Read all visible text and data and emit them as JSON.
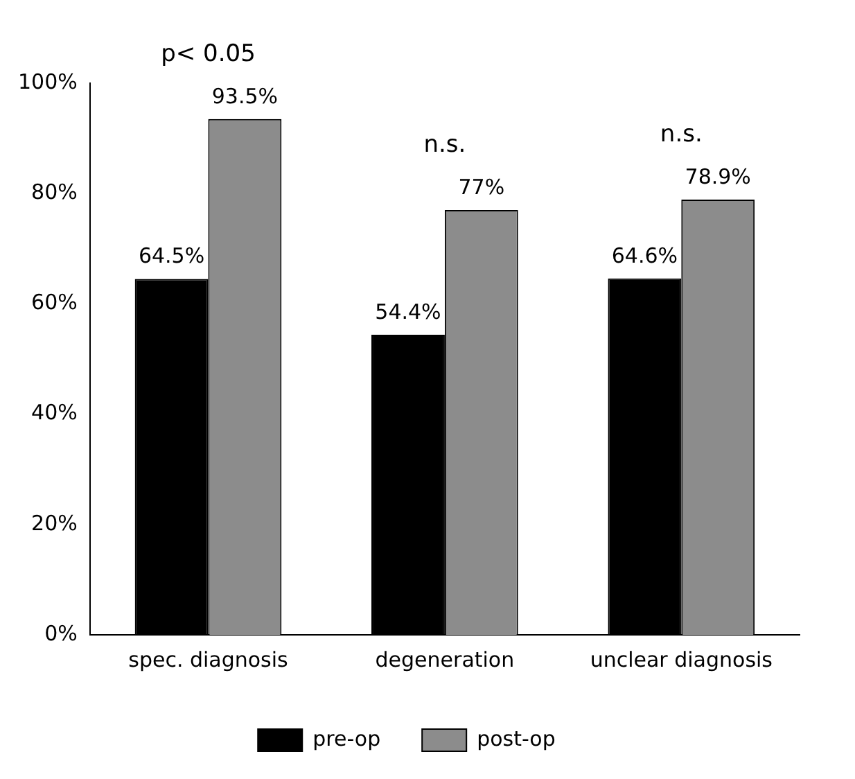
{
  "chart_data": {
    "type": "bar",
    "categories": [
      "spec. diagnosis",
      "degeneration",
      "unclear diagnosis"
    ],
    "series": [
      {
        "name": "pre-op",
        "color": "#000000",
        "values": [
          64.5,
          54.4,
          64.6
        ],
        "value_labels": [
          "64.5%",
          "54.4%",
          "64.6%"
        ]
      },
      {
        "name": "post-op",
        "color": "#8c8c8c",
        "values": [
          93.5,
          77,
          78.9
        ],
        "value_labels": [
          "93.5%",
          "77%",
          "78.9%"
        ]
      }
    ],
    "ylim": [
      0,
      100
    ],
    "yticks": [
      {
        "value": 0,
        "label": "0%"
      },
      {
        "value": 20,
        "label": "20%"
      },
      {
        "value": 40,
        "label": "40%"
      },
      {
        "value": 60,
        "label": "60%"
      },
      {
        "value": 80,
        "label": "80%"
      },
      {
        "value": 100,
        "label": "100%"
      }
    ],
    "annotations": [
      "p< 0.05",
      "n.s.",
      "n.s."
    ],
    "grid": false,
    "legend": "bottom"
  }
}
